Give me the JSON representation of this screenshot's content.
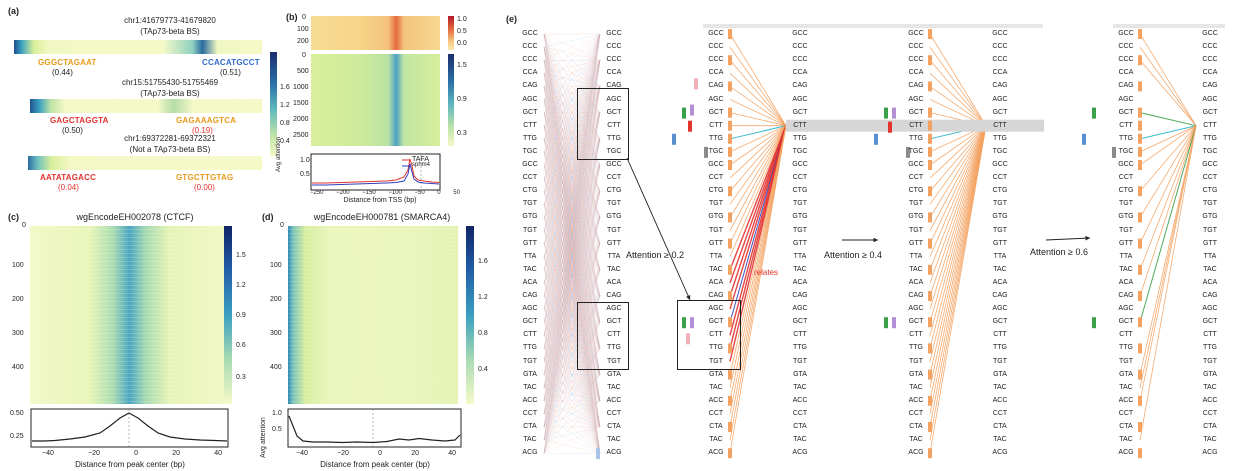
{
  "panels": {
    "a": {
      "label": "(a)",
      "regions": [
        {
          "coord": "chr1:41679773-41679820",
          "note": "(TAp73-beta BS)",
          "motifs": [
            {
              "seq": "GGGCTAGAAT",
              "score": "(0.44)",
              "score_red": false
            },
            {
              "seq": "CCACATGCCT",
              "score": "(0.51)",
              "score_red": false
            }
          ]
        },
        {
          "coord": "chr15:51755430-51755469",
          "note": "(TAp73-beta BS)",
          "motifs": [
            {
              "seq": "GAGCTAGGTA",
              "score": "(0.50)",
              "score_red": false
            },
            {
              "seq": "GAGAAAGTCA",
              "score": "(0.19)",
              "score_red": true
            }
          ]
        },
        {
          "coord": "chr1:69372281-69372321",
          "note": "(Not a TAp73-beta BS)",
          "motifs": [
            {
              "seq": "AATATAGACC",
              "score": "(0.04)",
              "score_red": true
            },
            {
              "seq": "GTGCTTGTAG",
              "score": "(0.00)",
              "score_red": true
            }
          ]
        }
      ],
      "colorbar_ticks": [
        "1.6",
        "1.2",
        "0.8",
        "0.4"
      ]
    },
    "b": {
      "label": "(b)",
      "top_yticks": [
        "0",
        "100",
        "200"
      ],
      "bottom_yticks": [
        "0",
        "500",
        "1000",
        "1500",
        "2000",
        "2500"
      ],
      "top_cbar_ticks": [
        "1.0",
        "0.5",
        "0.0"
      ],
      "bottom_cbar_ticks": [
        "1.5",
        "0.9",
        "0.3"
      ],
      "line_ylabel": "Avg attention",
      "line_yticks": [
        "1.0",
        "0.5"
      ],
      "line_xlabel": "Distance from TSS (bp)",
      "line_xticks": [
        "−250",
        "−200",
        "−150",
        "−100",
        "−50",
        "0",
        "50"
      ],
      "legend": [
        {
          "name": "TAFA",
          "color": "#e2332f"
        },
        {
          "name": "sphm4",
          "color": "#2b3fbf"
        }
      ]
    },
    "c": {
      "label": "(c)",
      "title": "wgEncodeEH002078 (CTCF)",
      "yticks": [
        "0",
        "100",
        "200",
        "300",
        "400"
      ],
      "cbar_ticks": [
        "1.5",
        "1.2",
        "0.9",
        "0.6",
        "0.3"
      ],
      "line_ylabel": "Avg attention",
      "line_yticks": [
        "0.50",
        "0.25"
      ],
      "xlabel": "Distance from peak center (bp)",
      "xticks": [
        "−40",
        "−20",
        "0",
        "20",
        "40"
      ]
    },
    "d": {
      "label": "(d)",
      "title": "wgEncodeEH000781 (SMARCA4)",
      "yticks": [
        "0",
        "100",
        "200",
        "300",
        "400"
      ],
      "cbar_ticks": [
        "1.6",
        "1.2",
        "0.8",
        "0.4"
      ],
      "line_ylabel": "Avg attention",
      "line_yticks": [
        "1.0",
        "0.5"
      ],
      "xlabel": "Distance from peak center (bp)",
      "xticks": [
        "−40",
        "−20",
        "0",
        "20",
        "40"
      ]
    },
    "e": {
      "label": "(e)",
      "kmers": [
        "GCC",
        "CCC",
        "CCC",
        "CCA",
        "CAG",
        "AGC",
        "GCT",
        "CTT",
        "TTG",
        "TGC",
        "GCC",
        "CCT",
        "CTG",
        "TGT",
        "GTG",
        "TGT",
        "GTT",
        "TTA",
        "TAC",
        "ACA",
        "CAG",
        "AGC",
        "GCT",
        "CTT",
        "TTG",
        "TGT",
        "GTA",
        "TAC",
        "ACC",
        "CCT",
        "CTA",
        "TAC",
        "ACG"
      ],
      "thresholds": [
        "Attention ≥ 0.2",
        "Attention ≥ 0.4",
        "Attention ≥ 0.6"
      ],
      "relates": "relates"
    }
  }
}
